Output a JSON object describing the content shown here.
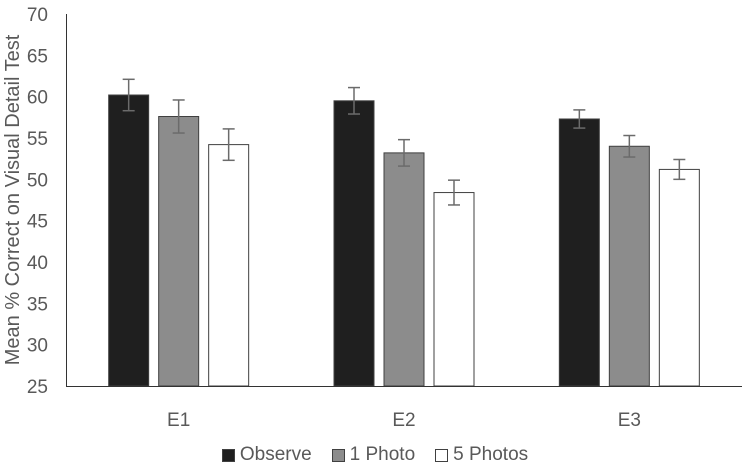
{
  "chart_data": {
    "type": "bar",
    "title": "",
    "xlabel": "",
    "ylabel": "Mean % Correct on Visual Detail Test",
    "ylim": [
      25,
      70
    ],
    "yticks": [
      25,
      30,
      35,
      40,
      45,
      50,
      55,
      60,
      65,
      70
    ],
    "categories": [
      "E1",
      "E2",
      "E3"
    ],
    "series": [
      {
        "name": "Observe",
        "color": "#1f1f1f",
        "values": [
          60.2,
          59.5,
          57.3
        ],
        "errors": [
          1.9,
          1.6,
          1.1
        ]
      },
      {
        "name": "1 Photo",
        "color": "#8c8c8c",
        "values": [
          57.6,
          53.2,
          54.0
        ],
        "errors": [
          2.0,
          1.6,
          1.3
        ]
      },
      {
        "name": "5 Photos",
        "color": "#ffffff",
        "values": [
          54.2,
          48.4,
          51.2
        ],
        "errors": [
          1.9,
          1.5,
          1.2
        ]
      }
    ],
    "grid": false,
    "legend_position": "bottom"
  }
}
